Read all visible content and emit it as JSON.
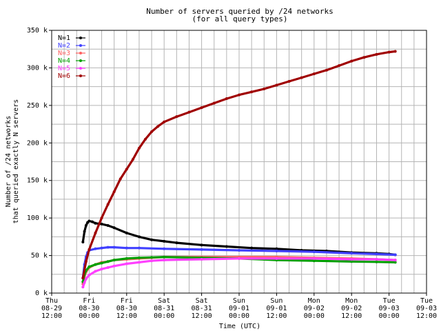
{
  "chart_data": {
    "type": "line",
    "title": "Number of servers queried by /24 networks",
    "subtitle": "(for all query types)",
    "xlabel": "Time (UTC)",
    "ylabel_line1": "Number of /24 networks",
    "ylabel_line2": "that queried exactly N servers",
    "legend_position": "top-left",
    "grid": true,
    "x_ticks": [
      {
        "day": "Thu",
        "date": "08-29",
        "time": "12:00"
      },
      {
        "day": "Fri",
        "date": "08-30",
        "time": "00:00"
      },
      {
        "day": "Fri",
        "date": "08-30",
        "time": "12:00"
      },
      {
        "day": "Sat",
        "date": "08-31",
        "time": "00:00"
      },
      {
        "day": "Sat",
        "date": "08-31",
        "time": "12:00"
      },
      {
        "day": "Sun",
        "date": "09-01",
        "time": "00:00"
      },
      {
        "day": "Sun",
        "date": "09-01",
        "time": "12:00"
      },
      {
        "day": "Mon",
        "date": "09-02",
        "time": "00:00"
      },
      {
        "day": "Mon",
        "date": "09-02",
        "time": "12:00"
      },
      {
        "day": "Tue",
        "date": "09-03",
        "time": "00:00"
      },
      {
        "day": "Tue",
        "date": "09-03",
        "time": "12:00"
      }
    ],
    "y_ticks": [
      "0 k",
      "50 k",
      "100 k",
      "150 k",
      "200 k",
      "250 k",
      "300 k",
      "350 k"
    ],
    "xlim": [
      0,
      120
    ],
    "ylim": [
      0,
      350000
    ],
    "x_unit_note": "hours from Thu 08-29 12:00",
    "series": [
      {
        "name": "N=1",
        "color": "#000000",
        "x": [
          10,
          10.5,
          11,
          11.5,
          12,
          13,
          14,
          16,
          18,
          20,
          24,
          28,
          32,
          36,
          40,
          48,
          56,
          64,
          72,
          80,
          88,
          96,
          104,
          108,
          110
        ],
        "y": [
          68000,
          82000,
          90000,
          94000,
          96000,
          95000,
          93000,
          92000,
          90000,
          87000,
          80000,
          75000,
          71000,
          69000,
          67000,
          64000,
          62000,
          60000,
          59000,
          57000,
          56000,
          54000,
          53000,
          52000,
          51000
        ]
      },
      {
        "name": "N=2",
        "color": "#4040ff",
        "x": [
          10,
          10.5,
          11,
          11.5,
          12,
          14,
          16,
          18,
          20,
          24,
          28,
          36,
          48,
          60,
          72,
          84,
          96,
          104,
          110
        ],
        "y": [
          20000,
          38000,
          48000,
          54000,
          57000,
          59000,
          60000,
          61000,
          61000,
          60000,
          60000,
          59000,
          58000,
          57000,
          56000,
          55000,
          53000,
          52000,
          51000
        ]
      },
      {
        "name": "N=3",
        "color": "#ff6060",
        "x": [
          10,
          10.5,
          11,
          12,
          14,
          16,
          18,
          20,
          24,
          28,
          32,
          36,
          48,
          60,
          72,
          84,
          96,
          104,
          110
        ],
        "y": [
          12000,
          22000,
          28000,
          34000,
          38000,
          41000,
          42000,
          44000,
          45000,
          46000,
          47000,
          48000,
          48000,
          48000,
          48000,
          47000,
          46000,
          45000,
          44000
        ]
      },
      {
        "name": "N=4",
        "color": "#00a000",
        "x": [
          10,
          10.5,
          11,
          12,
          14,
          16,
          18,
          20,
          24,
          28,
          32,
          36,
          48,
          60,
          72,
          84,
          96,
          104,
          110
        ],
        "y": [
          15000,
          25000,
          30000,
          35000,
          38000,
          40000,
          42000,
          44000,
          46000,
          47000,
          47500,
          48000,
          47000,
          46000,
          44000,
          43000,
          42000,
          41500,
          41000
        ]
      },
      {
        "name": "N=5",
        "color": "#ff40ff",
        "x": [
          10,
          10.5,
          11,
          12,
          14,
          16,
          18,
          20,
          24,
          28,
          32,
          36,
          48,
          60,
          72,
          84,
          96,
          104,
          110
        ],
        "y": [
          8000,
          14000,
          19000,
          24000,
          29000,
          32000,
          34000,
          36000,
          39000,
          41000,
          43000,
          44000,
          45000,
          46000,
          46000,
          46000,
          45000,
          45000,
          44000
        ]
      },
      {
        "name": "N=6",
        "color": "#a00000",
        "x": [
          10,
          11,
          12,
          14,
          16,
          18,
          20,
          22,
          24,
          26,
          28,
          30,
          32,
          34,
          36,
          40,
          44,
          48,
          52,
          56,
          60,
          64,
          68,
          72,
          76,
          80,
          84,
          88,
          92,
          96,
          100,
          104,
          108,
          110
        ],
        "y": [
          20000,
          42000,
          58000,
          80000,
          100000,
          118000,
          135000,
          152000,
          165000,
          178000,
          193000,
          205000,
          215000,
          222000,
          228000,
          235000,
          241000,
          247000,
          253000,
          259000,
          264000,
          268000,
          272000,
          277000,
          282000,
          287000,
          292000,
          297000,
          303000,
          309000,
          314000,
          318000,
          321000,
          322000
        ]
      }
    ]
  }
}
